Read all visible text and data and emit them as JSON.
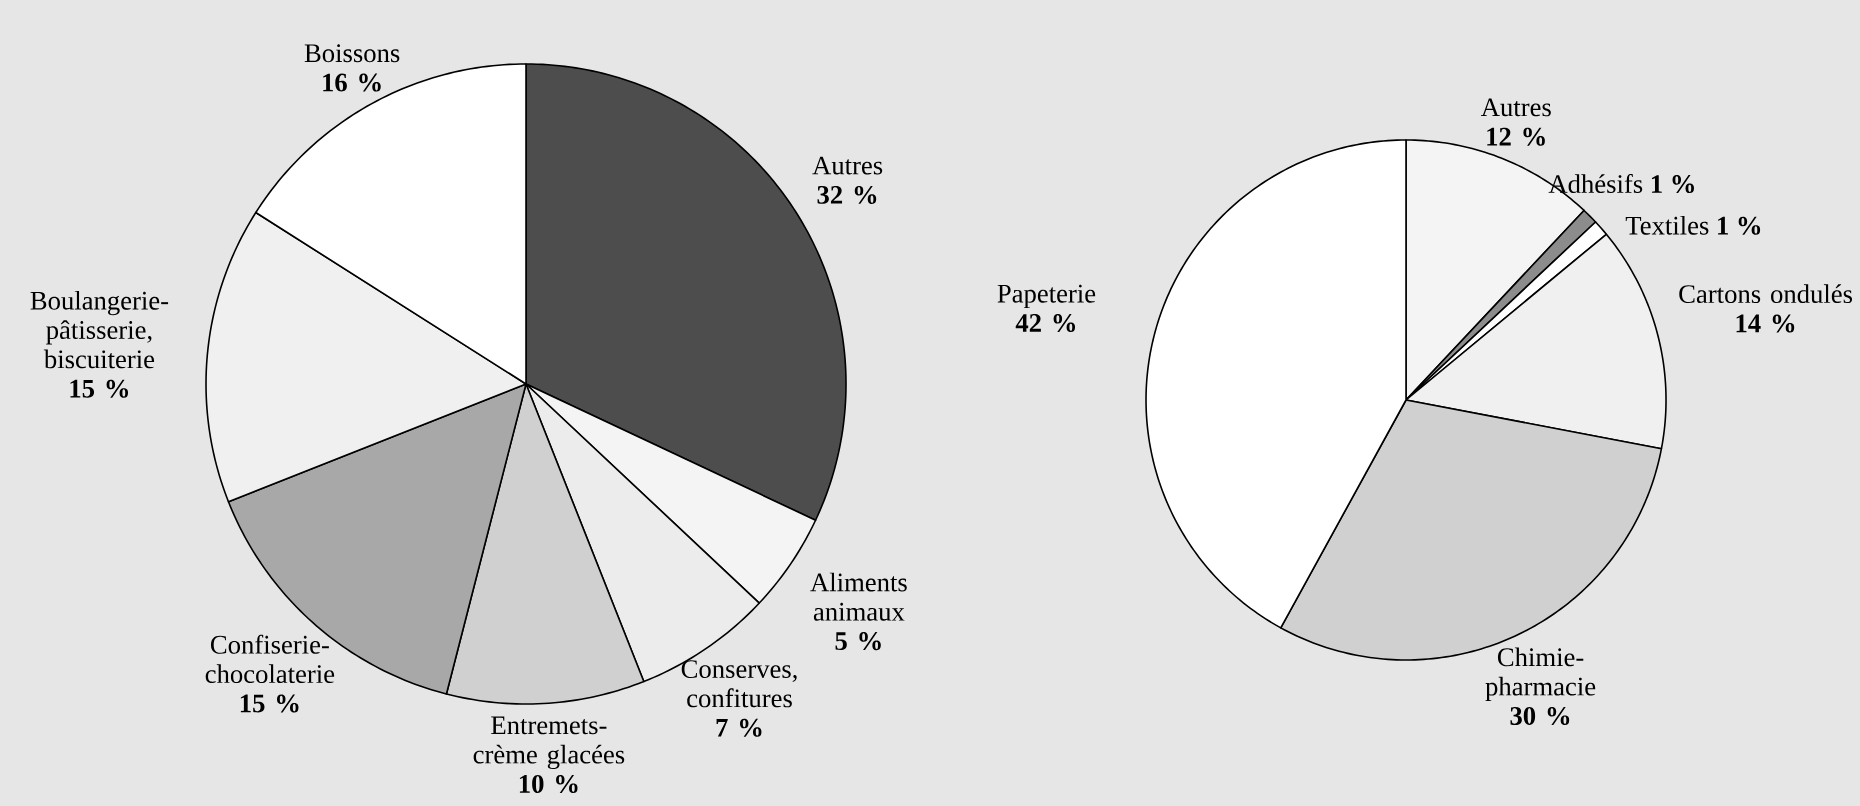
{
  "chart_data": [
    {
      "type": "pie",
      "categories": [
        "Autres",
        "Aliments animaux",
        "Conserves, confitures",
        "Entremets-crème glacées",
        "Confiserie-chocolaterie",
        "Boulangerie-pâtisserie, biscuiterie",
        "Boissons"
      ],
      "values": [
        32,
        5,
        7,
        10,
        15,
        15,
        16
      ],
      "colors": [
        "#4d4d4d",
        "#f4f4f4",
        "#ececec",
        "#d0d0d0",
        "#a8a8a8",
        "#f0f0f0",
        "#ffffff"
      ],
      "value_labels": [
        "32 %",
        "5 %",
        "7 %",
        "10 %",
        "15 %",
        "15 %",
        "16 %"
      ]
    },
    {
      "type": "pie",
      "categories": [
        "Autres",
        "Adhésifs",
        "Textiles",
        "Cartons ondulés",
        "Chimie-pharmacie",
        "Papeterie"
      ],
      "values": [
        12,
        1,
        1,
        14,
        30,
        42
      ],
      "colors": [
        "#f4f4f4",
        "#8c8c8c",
        "#ffffff",
        "#f0f0f0",
        "#d0d0d0",
        "#ffffff"
      ],
      "value_labels": [
        "12 %",
        "1 %",
        "1 %",
        "14 %",
        "30 %",
        "42 %"
      ]
    }
  ]
}
